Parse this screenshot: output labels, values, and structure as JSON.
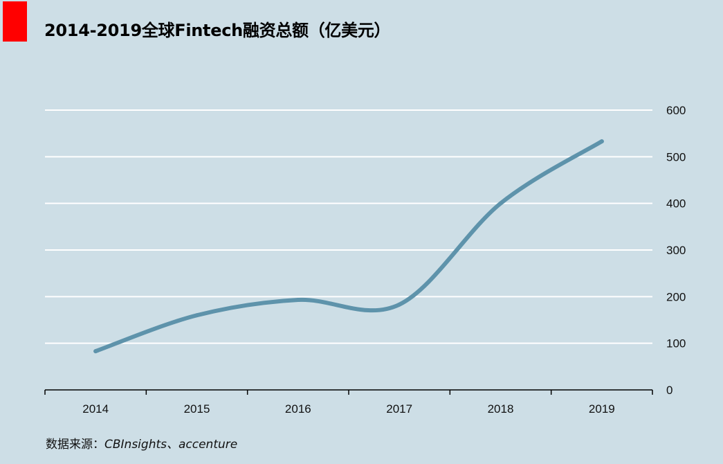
{
  "title": "2014-2019全球Fintech融资总额（亿美元）",
  "source": {
    "prefix": "数据来源：",
    "names": "CBInsights、accenture"
  },
  "colors": {
    "background": "#cddee6",
    "accent": "#ff0000",
    "line": "#5e93ab",
    "gridline": "#ffffff"
  },
  "chart_data": {
    "type": "line",
    "title": "2014-2019全球Fintech融资总额（亿美元）",
    "categories": [
      "2014",
      "2015",
      "2016",
      "2017",
      "2018",
      "2019"
    ],
    "series": [
      {
        "name": "全球Fintech融资总额",
        "values": [
          83,
          160,
          193,
          183,
          400,
          533
        ]
      }
    ],
    "xlabel": "",
    "ylabel": "",
    "ylim": [
      0,
      600
    ],
    "yticks": [
      0,
      100,
      200,
      300,
      400,
      500,
      600
    ],
    "y_axis_position": "right",
    "grid": true,
    "legend": "none"
  }
}
